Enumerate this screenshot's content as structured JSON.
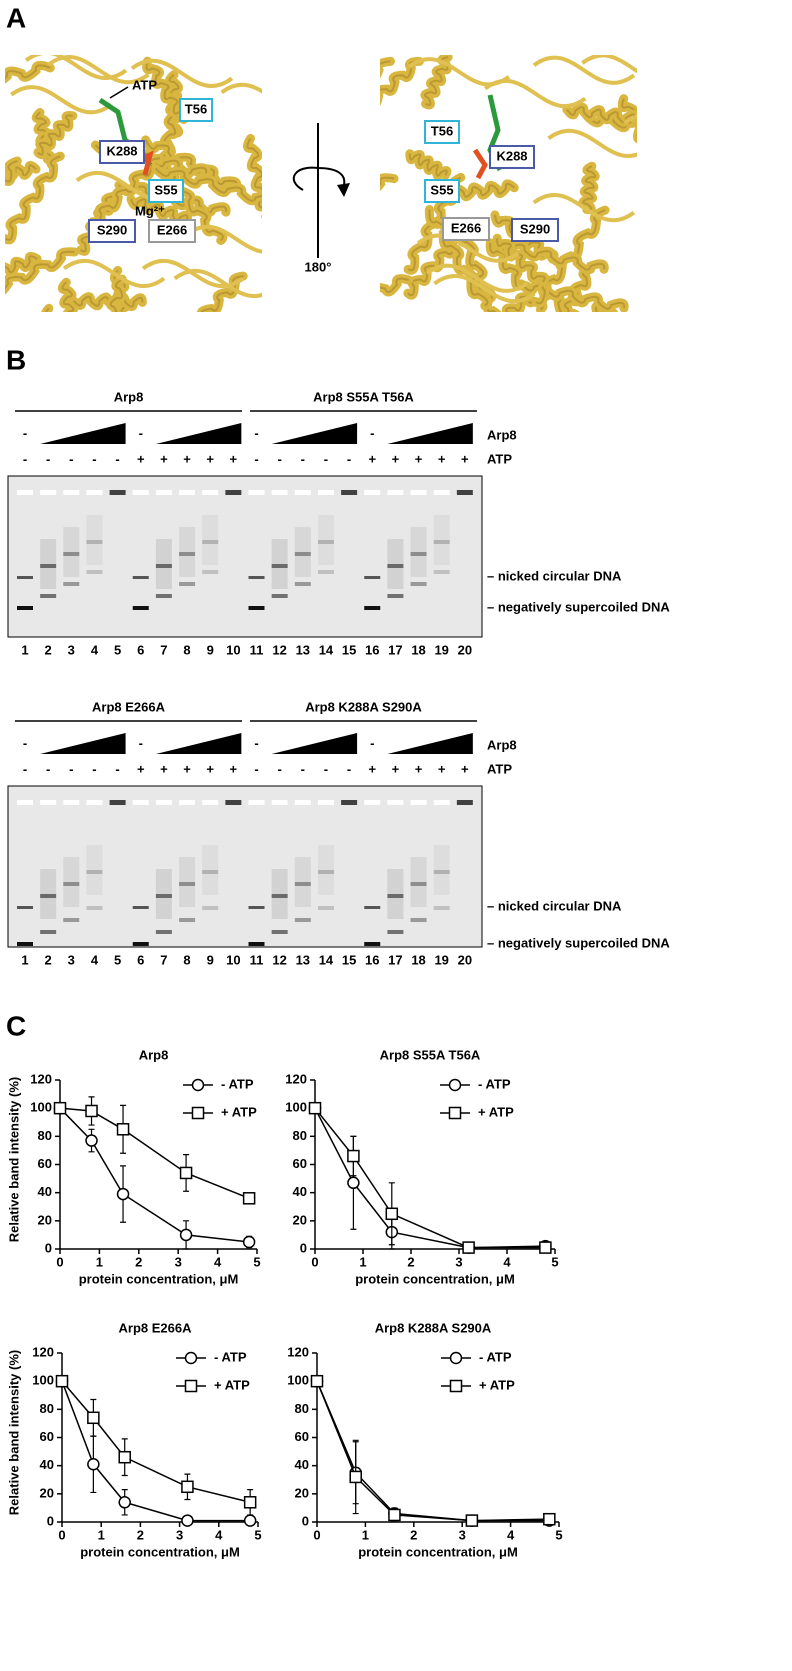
{
  "panel_a": {
    "label": "A",
    "left_labels": [
      "ATP",
      "T56",
      "K288",
      "S55",
      "Mg²⁺",
      "S290",
      "E266"
    ],
    "right_labels": [
      "T56",
      "K288",
      "S55",
      "E266",
      "S290"
    ],
    "rotation": "180°"
  },
  "panel_b": {
    "label": "B",
    "row_labels": [
      "Arp8",
      "ATP"
    ],
    "gels": [
      {
        "groups": [
          "Arp8",
          "Arp8 S55A T56A"
        ],
        "protein_minus": [
          "-",
          "-",
          "-",
          "-"
        ],
        "atp_row": [
          "-",
          "-",
          "-",
          "-",
          "-",
          "+",
          "+",
          "+",
          "+",
          "+",
          "-",
          "-",
          "-",
          "-",
          "-",
          "+",
          "+",
          "+",
          "+",
          "+"
        ],
        "lanes": [
          1,
          2,
          3,
          4,
          5,
          6,
          7,
          8,
          9,
          10,
          11,
          12,
          13,
          14,
          15,
          16,
          17,
          18,
          19,
          20
        ],
        "band_labels": [
          "– nicked circular DNA",
          "– negatively supercoiled DNA"
        ]
      },
      {
        "groups": [
          "Arp8 E266A",
          "Arp8 K288A S290A"
        ],
        "protein_minus": [
          "-",
          "-",
          "-",
          "-"
        ],
        "atp_row": [
          "-",
          "-",
          "-",
          "-",
          "-",
          "+",
          "+",
          "+",
          "+",
          "+",
          "-",
          "-",
          "-",
          "-",
          "-",
          "+",
          "+",
          "+",
          "+",
          "+"
        ],
        "lanes": [
          1,
          2,
          3,
          4,
          5,
          6,
          7,
          8,
          9,
          10,
          11,
          12,
          13,
          14,
          15,
          16,
          17,
          18,
          19,
          20
        ],
        "band_labels": [
          "– nicked circular DNA",
          "– negatively supercoiled DNA"
        ]
      }
    ]
  },
  "panel_c": {
    "label": "C"
  },
  "chart_data": [
    {
      "type": "line",
      "title": "Arp8",
      "y_label": "Relative band intensity (%)",
      "x_label": "protein concentration, μM",
      "x": [
        0,
        0.8,
        1.6,
        3.2,
        4.8
      ],
      "xlim": [
        0,
        5
      ],
      "xticks": [
        0,
        1,
        2,
        3,
        4,
        5
      ],
      "ylim": [
        0,
        120
      ],
      "yticks": [
        0,
        20,
        40,
        60,
        80,
        100,
        120
      ],
      "legend": "upper right",
      "series": [
        {
          "name": "- ATP",
          "color": "#000000",
          "marker": "circle",
          "values": [
            100,
            77,
            39,
            10,
            5
          ],
          "errors": [
            0,
            8,
            20,
            10,
            4
          ]
        },
        {
          "name": "+ ATP",
          "color": "#000000",
          "marker": "square",
          "values": [
            100,
            98,
            85,
            54,
            36
          ],
          "errors": [
            0,
            10,
            17,
            13,
            0
          ]
        }
      ]
    },
    {
      "type": "line",
      "title": "Arp8 S55A T56A",
      "x_label": "protein concentration, μM",
      "x": [
        0,
        0.8,
        1.6,
        3.2,
        4.8
      ],
      "xlim": [
        0,
        5
      ],
      "xticks": [
        0,
        1,
        2,
        3,
        4,
        5
      ],
      "ylim": [
        0,
        120
      ],
      "yticks": [
        0,
        20,
        40,
        60,
        80,
        100,
        120
      ],
      "legend": "upper right",
      "series": [
        {
          "name": "- ATP",
          "color": "#000000",
          "marker": "circle",
          "values": [
            100,
            47,
            12,
            1,
            2
          ],
          "errors": [
            0,
            33,
            12,
            0,
            0
          ]
        },
        {
          "name": "+ ATP",
          "color": "#000000",
          "marker": "square",
          "values": [
            100,
            66,
            25,
            1,
            1
          ],
          "errors": [
            0,
            14,
            22,
            0,
            0
          ]
        }
      ]
    },
    {
      "type": "line",
      "title": "Arp8 E266A",
      "y_label": "Relative band intensity (%)",
      "x_label": "protein concentration, μM",
      "x": [
        0,
        0.8,
        1.6,
        3.2,
        4.8
      ],
      "xlim": [
        0,
        5
      ],
      "xticks": [
        0,
        1,
        2,
        3,
        4,
        5
      ],
      "ylim": [
        0,
        120
      ],
      "yticks": [
        0,
        20,
        40,
        60,
        80,
        100,
        120
      ],
      "legend": "upper right",
      "series": [
        {
          "name": "- ATP",
          "color": "#000000",
          "marker": "circle",
          "values": [
            100,
            41,
            14,
            1,
            1
          ],
          "errors": [
            0,
            20,
            9,
            0,
            0
          ]
        },
        {
          "name": "+ ATP",
          "color": "#000000",
          "marker": "square",
          "values": [
            100,
            74,
            46,
            25,
            14
          ],
          "errors": [
            0,
            13,
            13,
            9,
            9
          ]
        }
      ]
    },
    {
      "type": "line",
      "title": "Arp8 K288A S290A",
      "x_label": "protein concentration, μM",
      "x": [
        0,
        0.8,
        1.6,
        3.2,
        4.8
      ],
      "xlim": [
        0,
        5
      ],
      "xticks": [
        0,
        1,
        2,
        3,
        4,
        5
      ],
      "ylim": [
        0,
        120
      ],
      "yticks": [
        0,
        20,
        40,
        60,
        80,
        100,
        120
      ],
      "legend": "upper right",
      "series": [
        {
          "name": "- ATP",
          "color": "#000000",
          "marker": "circle",
          "values": [
            100,
            35,
            6,
            1,
            1
          ],
          "errors": [
            0,
            22,
            4,
            0,
            0
          ]
        },
        {
          "name": "+ ATP",
          "color": "#000000",
          "marker": "square",
          "values": [
            100,
            32,
            5,
            1,
            2
          ],
          "errors": [
            0,
            26,
            4,
            0,
            0
          ]
        }
      ]
    }
  ]
}
